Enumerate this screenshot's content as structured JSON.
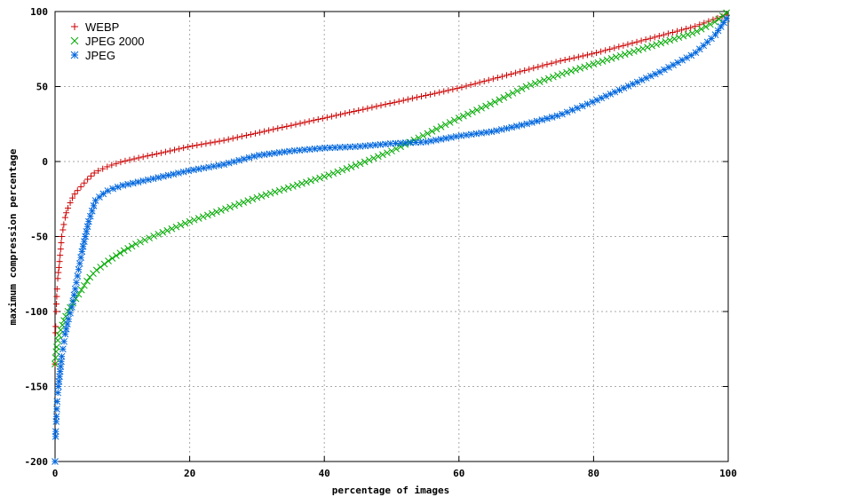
{
  "chart_data": {
    "type": "scatter",
    "title": "",
    "xlabel": "percentage of images",
    "ylabel": "maximum compression percentage",
    "xlim": [
      0,
      100
    ],
    "ylim": [
      -200,
      100
    ],
    "xticks": [
      0,
      20,
      40,
      60,
      80,
      100
    ],
    "yticks": [
      -200,
      -150,
      -100,
      -50,
      0,
      50,
      100
    ],
    "grid": true,
    "legend_position": "top-left",
    "series": [
      {
        "name": "WEBP",
        "color": "#cc0000",
        "marker": "plus",
        "values": [
          [
            0,
            -135
          ],
          [
            0.1,
            -110
          ],
          [
            0.2,
            -95
          ],
          [
            0.3,
            -85
          ],
          [
            0.4,
            -78
          ],
          [
            0.6,
            -70
          ],
          [
            0.8,
            -60
          ],
          [
            1,
            -50
          ],
          [
            1.3,
            -42
          ],
          [
            1.6,
            -35
          ],
          [
            2,
            -30
          ],
          [
            2.5,
            -25
          ],
          [
            3,
            -21
          ],
          [
            4,
            -16
          ],
          [
            5,
            -11
          ],
          [
            6,
            -7
          ],
          [
            8,
            -3
          ],
          [
            10,
            0
          ],
          [
            15,
            5
          ],
          [
            20,
            10
          ],
          [
            25,
            14
          ],
          [
            30,
            19
          ],
          [
            35,
            24
          ],
          [
            40,
            29
          ],
          [
            45,
            34
          ],
          [
            50,
            39
          ],
          [
            55,
            44
          ],
          [
            60,
            49
          ],
          [
            65,
            55
          ],
          [
            70,
            61
          ],
          [
            75,
            67
          ],
          [
            80,
            72
          ],
          [
            85,
            78
          ],
          [
            90,
            84
          ],
          [
            95,
            90
          ],
          [
            98,
            95
          ],
          [
            100,
            98
          ]
        ]
      },
      {
        "name": "JPEG 2000",
        "color": "#00aa00",
        "marker": "cross",
        "values": [
          [
            0,
            -135
          ],
          [
            0.2,
            -125
          ],
          [
            0.5,
            -117
          ],
          [
            1,
            -110
          ],
          [
            1.5,
            -104
          ],
          [
            2,
            -99
          ],
          [
            3,
            -92
          ],
          [
            4,
            -85
          ],
          [
            5,
            -78
          ],
          [
            6,
            -73
          ],
          [
            8,
            -66
          ],
          [
            10,
            -60
          ],
          [
            12,
            -55
          ],
          [
            15,
            -49
          ],
          [
            20,
            -40
          ],
          [
            25,
            -32
          ],
          [
            30,
            -24
          ],
          [
            35,
            -17
          ],
          [
            40,
            -10
          ],
          [
            45,
            -2
          ],
          [
            50,
            7
          ],
          [
            55,
            18
          ],
          [
            60,
            29
          ],
          [
            65,
            39
          ],
          [
            70,
            50
          ],
          [
            75,
            58
          ],
          [
            80,
            65
          ],
          [
            85,
            72
          ],
          [
            90,
            79
          ],
          [
            95,
            86
          ],
          [
            98,
            93
          ],
          [
            100,
            100
          ]
        ]
      },
      {
        "name": "JPEG",
        "color": "#0066dd",
        "marker": "star",
        "values": [
          [
            0,
            -200
          ],
          [
            0.1,
            -180
          ],
          [
            0.2,
            -170
          ],
          [
            0.3,
            -160
          ],
          [
            0.5,
            -150
          ],
          [
            0.8,
            -138
          ],
          [
            1,
            -130
          ],
          [
            1.5,
            -115
          ],
          [
            2,
            -105
          ],
          [
            2.5,
            -97
          ],
          [
            3,
            -85
          ],
          [
            3.5,
            -72
          ],
          [
            4,
            -60
          ],
          [
            4.5,
            -50
          ],
          [
            5,
            -40
          ],
          [
            5.5,
            -33
          ],
          [
            6,
            -26
          ],
          [
            7,
            -22
          ],
          [
            8,
            -19
          ],
          [
            10,
            -16
          ],
          [
            12,
            -14
          ],
          [
            15,
            -11
          ],
          [
            18,
            -8
          ],
          [
            20,
            -6
          ],
          [
            25,
            -2
          ],
          [
            30,
            4
          ],
          [
            35,
            7
          ],
          [
            40,
            9
          ],
          [
            45,
            10
          ],
          [
            50,
            12
          ],
          [
            55,
            13
          ],
          [
            60,
            17
          ],
          [
            65,
            20
          ],
          [
            70,
            25
          ],
          [
            75,
            31
          ],
          [
            80,
            40
          ],
          [
            85,
            50
          ],
          [
            90,
            60
          ],
          [
            95,
            72
          ],
          [
            98,
            84
          ],
          [
            100,
            97
          ]
        ]
      }
    ]
  }
}
